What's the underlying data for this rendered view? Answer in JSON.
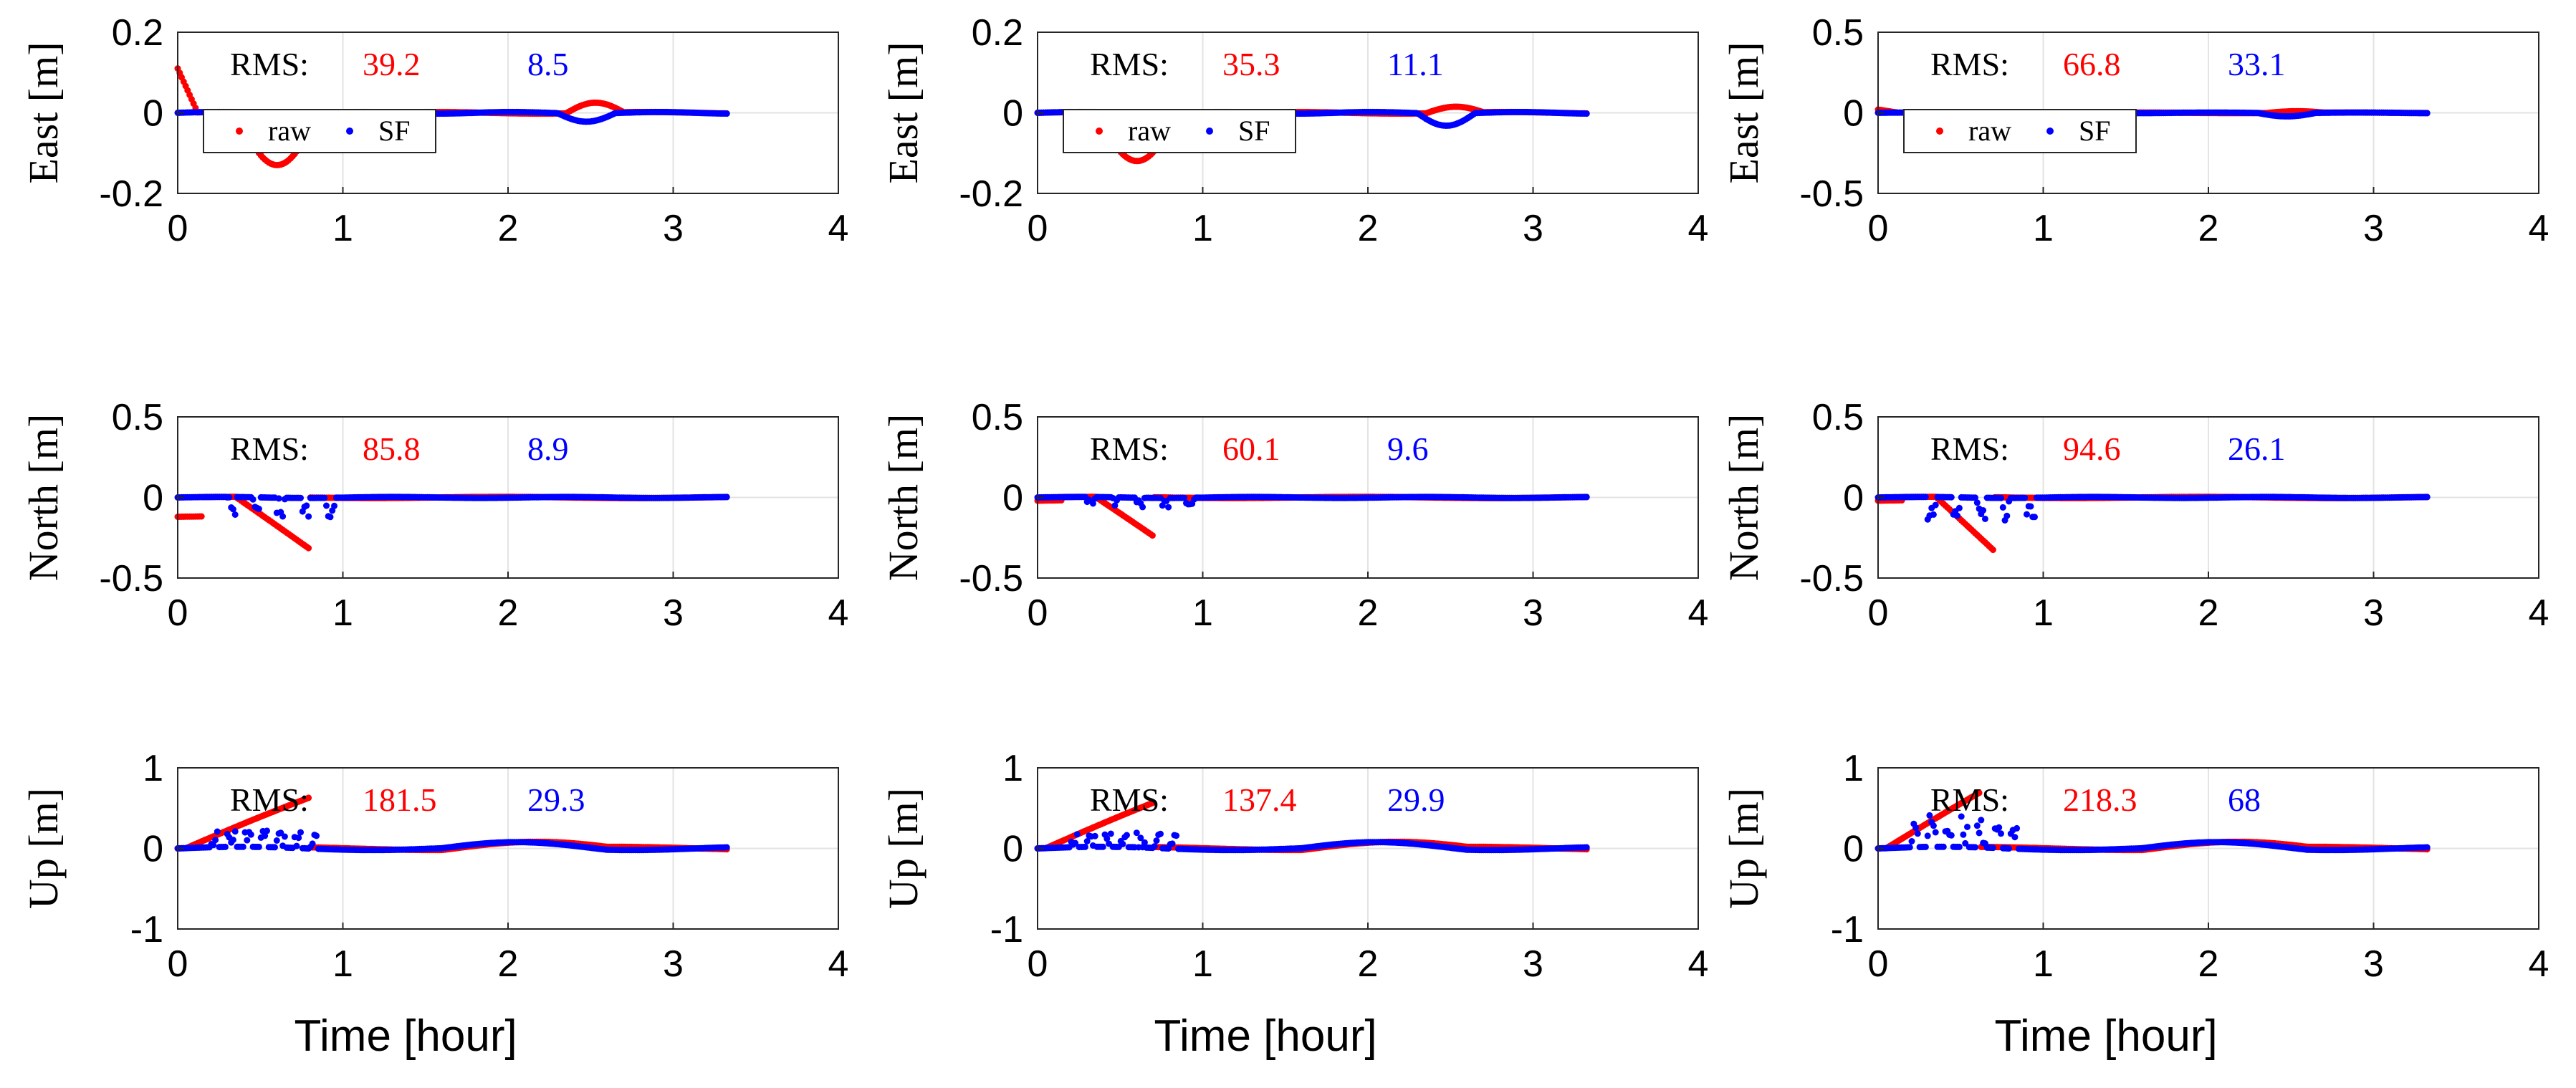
{
  "figure": {
    "rms_label": "RMS:",
    "legend": [
      "raw",
      "SF"
    ],
    "series_colors": {
      "raw": "#ff0000",
      "SF": "#0000ff"
    },
    "xlabel": "Time [hour]"
  },
  "chart_data": [
    {
      "type": "scatter",
      "col": 0,
      "row": 0,
      "ylabel": "East [m]",
      "ylim": [
        -0.2,
        0.2
      ],
      "yticks": [
        "0.2",
        "0",
        "-0.2"
      ],
      "xlim": [
        0,
        4
      ],
      "xticks": [
        "0",
        "1",
        "2",
        "3",
        "4"
      ],
      "xlabel": "",
      "rms_raw": "39.2",
      "rms_sf": "8.5",
      "legend": true
    },
    {
      "type": "scatter",
      "col": 1,
      "row": 0,
      "ylabel": "East [m]",
      "ylim": [
        -0.2,
        0.2
      ],
      "yticks": [
        "0.2",
        "0",
        "-0.2"
      ],
      "xlim": [
        0,
        4
      ],
      "xticks": [
        "0",
        "1",
        "2",
        "3",
        "4"
      ],
      "xlabel": "",
      "rms_raw": "35.3",
      "rms_sf": "11.1",
      "legend": true
    },
    {
      "type": "scatter",
      "col": 2,
      "row": 0,
      "ylabel": "East [m]",
      "ylim": [
        -0.5,
        0.5
      ],
      "yticks": [
        "0.5",
        "0",
        "-0.5"
      ],
      "xlim": [
        0,
        4
      ],
      "xticks": [
        "0",
        "1",
        "2",
        "3",
        "4"
      ],
      "xlabel": "",
      "rms_raw": "66.8",
      "rms_sf": "33.1",
      "legend": true
    },
    {
      "type": "scatter",
      "col": 0,
      "row": 1,
      "ylabel": "North [m]",
      "ylim": [
        -0.5,
        0.5
      ],
      "yticks": [
        "0.5",
        "0",
        "-0.5"
      ],
      "xlim": [
        0,
        4
      ],
      "xticks": [
        "0",
        "1",
        "2",
        "3",
        "4"
      ],
      "xlabel": "",
      "rms_raw": "85.8",
      "rms_sf": "8.9",
      "legend": false
    },
    {
      "type": "scatter",
      "col": 1,
      "row": 1,
      "ylabel": "North [m]",
      "ylim": [
        -0.5,
        0.5
      ],
      "yticks": [
        "0.5",
        "0",
        "-0.5"
      ],
      "xlim": [
        0,
        4
      ],
      "xticks": [
        "0",
        "1",
        "2",
        "3",
        "4"
      ],
      "xlabel": "",
      "rms_raw": "60.1",
      "rms_sf": "9.6",
      "legend": false
    },
    {
      "type": "scatter",
      "col": 2,
      "row": 1,
      "ylabel": "North [m]",
      "ylim": [
        -0.5,
        0.5
      ],
      "yticks": [
        "0.5",
        "0",
        "-0.5"
      ],
      "xlim": [
        0,
        4
      ],
      "xticks": [
        "0",
        "1",
        "2",
        "3",
        "4"
      ],
      "xlabel": "",
      "rms_raw": "94.6",
      "rms_sf": "26.1",
      "legend": false
    },
    {
      "type": "scatter",
      "col": 0,
      "row": 2,
      "ylabel": "Up [m]",
      "ylim": [
        -1,
        1
      ],
      "yticks": [
        "1",
        "0",
        "-1"
      ],
      "xlim": [
        0,
        4
      ],
      "xticks": [
        "0",
        "1",
        "2",
        "3",
        "4"
      ],
      "xlabel": "Time [hour]",
      "rms_raw": "181.5",
      "rms_sf": "29.3",
      "legend": false
    },
    {
      "type": "scatter",
      "col": 1,
      "row": 2,
      "ylabel": "Up [m]",
      "ylim": [
        -1,
        1
      ],
      "yticks": [
        "1",
        "0",
        "-1"
      ],
      "xlim": [
        0,
        4
      ],
      "xticks": [
        "0",
        "1",
        "2",
        "3",
        "4"
      ],
      "xlabel": "Time [hour]",
      "rms_raw": "137.4",
      "rms_sf": "29.9",
      "legend": false
    },
    {
      "type": "scatter",
      "col": 2,
      "row": 2,
      "ylabel": "Up [m]",
      "ylim": [
        -1,
        1
      ],
      "yticks": [
        "1",
        "0",
        "-1"
      ],
      "xlim": [
        0,
        4
      ],
      "xticks": [
        "0",
        "1",
        "2",
        "3",
        "4"
      ],
      "xlabel": "Time [hour]",
      "rms_raw": "218.3",
      "rms_sf": "68",
      "legend": false
    }
  ]
}
